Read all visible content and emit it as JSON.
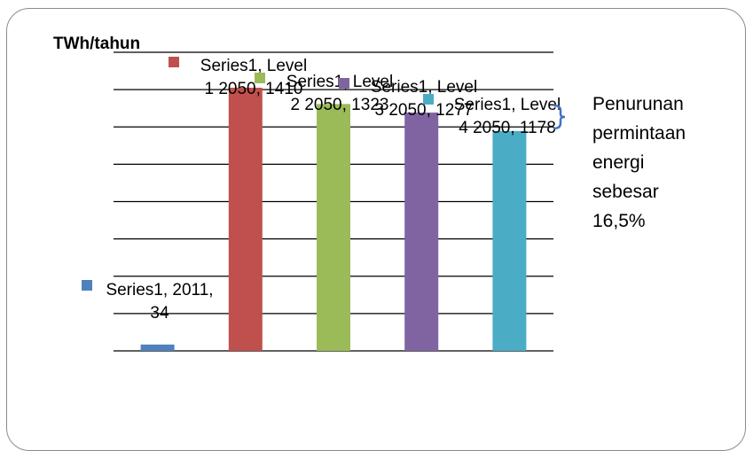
{
  "chart_data": {
    "type": "bar",
    "ylabel": "TWh/tahun",
    "categories": [
      "2011",
      "Level 1 2050",
      "Level 2 2050",
      "Level 3 2050",
      "Level 4 2050"
    ],
    "series": [
      {
        "name": "Series1",
        "values": [
          34,
          1410,
          1323,
          1277,
          1178
        ],
        "colors": [
          "#4f81bd",
          "#c0504d",
          "#9bbb59",
          "#8064a2",
          "#4bacc6"
        ]
      }
    ],
    "data_labels": [
      [
        "Series1, 2011,",
        "34"
      ],
      [
        "Series1, Level",
        "1 2050, 1410"
      ],
      [
        "Series1, Level",
        "2 2050, 1323"
      ],
      [
        "Series1, Level",
        "3 2050, 1277"
      ],
      [
        "Series1, Level",
        "4 2050, 1178"
      ]
    ],
    "ylim": [
      0,
      1600
    ],
    "gridlines": true,
    "annotation": {
      "text_lines": [
        "Penurunan",
        "permintaan",
        "energi",
        "sebesar",
        "16,5%"
      ],
      "bracket_color": "#4472c4"
    }
  }
}
